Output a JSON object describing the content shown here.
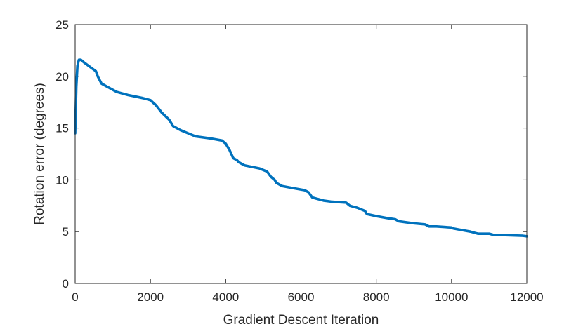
{
  "chart_data": {
    "type": "line",
    "title": "",
    "xlabel": "Gradient Descent Iteration",
    "ylabel": "Rotation error (degrees)",
    "xlim": [
      0,
      12000
    ],
    "ylim": [
      0,
      25
    ],
    "xticks": [
      0,
      2000,
      4000,
      6000,
      8000,
      10000,
      12000
    ],
    "yticks": [
      0,
      5,
      10,
      15,
      20,
      25
    ],
    "grid": false,
    "legend": "none",
    "color": "#0072BD",
    "series": [
      {
        "x": [
          0,
          30,
          60,
          100,
          150,
          250,
          400,
          550,
          600,
          700,
          900,
          1100,
          1400,
          1800,
          2000,
          2150,
          2300,
          2500,
          2600,
          2800,
          3000,
          3200,
          3600,
          3900,
          4000,
          4050,
          4100,
          4200,
          4300,
          4350,
          4500,
          4900,
          5100,
          5200,
          5300,
          5350,
          5500,
          5800,
          6100,
          6200,
          6300,
          6400,
          6600,
          6800,
          7200,
          7300,
          7500,
          7700,
          7750,
          8000,
          8300,
          8500,
          8600,
          8800,
          9000,
          9300,
          9400,
          9600,
          10000,
          10050,
          10200,
          10500,
          10600,
          10700,
          11000,
          11100,
          11500,
          11900,
          12000
        ],
        "values": [
          14.5,
          19,
          21,
          21.6,
          21.6,
          21.3,
          20.9,
          20.5,
          20.0,
          19.3,
          18.9,
          18.5,
          18.2,
          17.9,
          17.7,
          17.2,
          16.5,
          15.8,
          15.2,
          14.8,
          14.5,
          14.2,
          14.0,
          13.8,
          13.5,
          13.2,
          12.9,
          12.1,
          11.9,
          11.7,
          11.4,
          11.1,
          10.8,
          10.3,
          10.0,
          9.7,
          9.4,
          9.2,
          9.0,
          8.8,
          8.3,
          8.2,
          8.0,
          7.9,
          7.8,
          7.5,
          7.3,
          7.0,
          6.7,
          6.5,
          6.3,
          6.2,
          6.0,
          5.9,
          5.8,
          5.7,
          5.5,
          5.5,
          5.4,
          5.3,
          5.2,
          5.0,
          4.9,
          4.8,
          4.8,
          4.7,
          4.65,
          4.6,
          4.55
        ]
      }
    ]
  }
}
